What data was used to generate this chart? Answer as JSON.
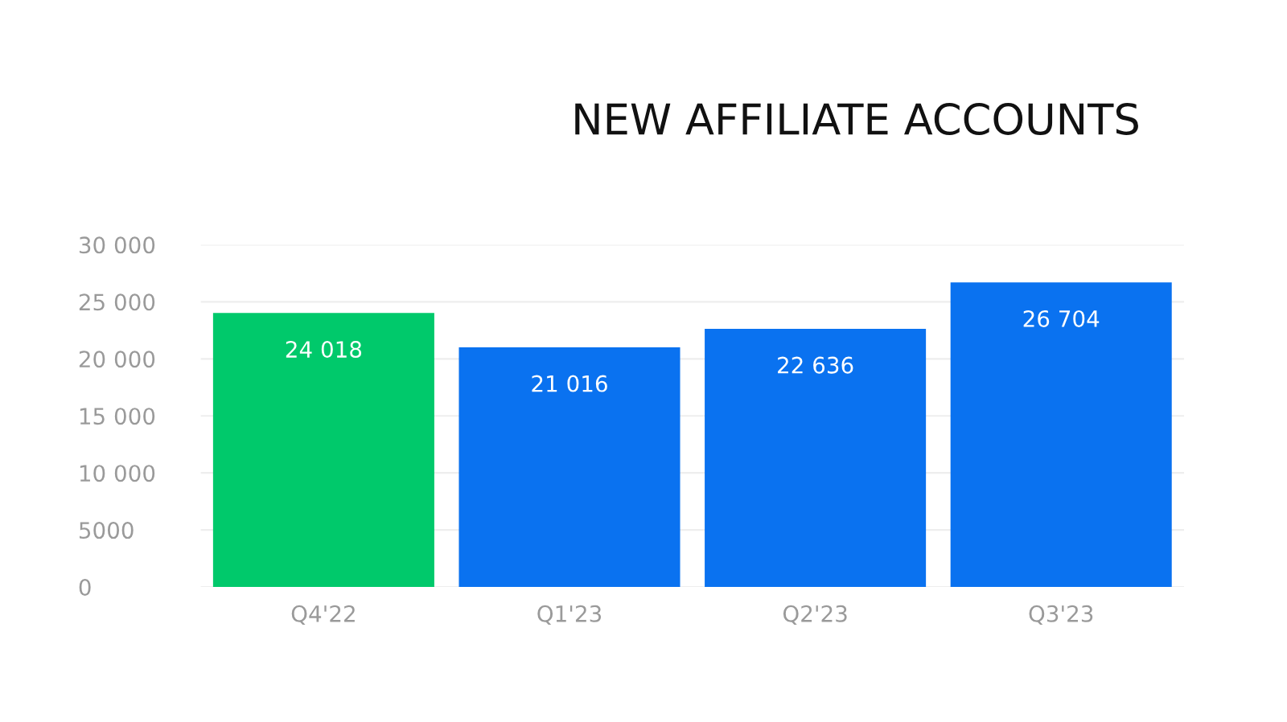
{
  "chart_data": {
    "type": "bar",
    "title": "NEW AFFILIATE ACCOUNTS",
    "categories": [
      "Q4'22",
      "Q1'23",
      "Q2'23",
      "Q3'23"
    ],
    "values": [
      24018,
      21016,
      22636,
      26704
    ],
    "colors": [
      "#00c96b",
      "#0a72f0",
      "#0a72f0",
      "#0a72f0"
    ],
    "value_labels": [
      "24 018",
      "21 016",
      "22 636",
      "26 704"
    ],
    "ylim": [
      0,
      30000
    ],
    "yticks": [
      0,
      {
        "value": 5000,
        "label": "5000"
      },
      {
        "value": 10000,
        "label": "10 000"
      },
      {
        "value": 15000,
        "label": "15 000"
      },
      {
        "value": 20000,
        "label": "20 000"
      },
      {
        "value": 25000,
        "label": "25 000"
      },
      {
        "value": 30000,
        "label": "30 000"
      }
    ],
    "grid": "y"
  }
}
